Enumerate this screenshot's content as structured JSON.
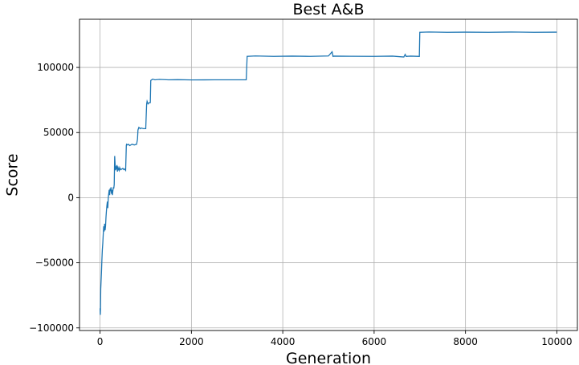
{
  "chart_data": {
    "type": "line",
    "title": "Best A&B",
    "xlabel": "Generation",
    "ylabel": "Score",
    "xlim": [
      -450,
      10450
    ],
    "ylim": [
      -102000,
      137000
    ],
    "xticks": [
      0,
      2000,
      4000,
      6000,
      8000,
      10000
    ],
    "xtick_labels": [
      "0",
      "2000",
      "4000",
      "6000",
      "8000",
      "10000"
    ],
    "yticks": [
      -100000,
      -50000,
      0,
      50000,
      100000
    ],
    "ytick_labels": [
      "−100000",
      "−50000",
      "0",
      "50000",
      "100000"
    ],
    "grid": true,
    "line_color": "#1f77b4",
    "series": [
      {
        "x": [
          0,
          5,
          10,
          15,
          20,
          30,
          40,
          50,
          60,
          70,
          80,
          90,
          100,
          110,
          120,
          130,
          140,
          150,
          160,
          170,
          180,
          190,
          200,
          210,
          220,
          230,
          240,
          250,
          260,
          270,
          280,
          290,
          300,
          310,
          320,
          330,
          340,
          350,
          360,
          370,
          380,
          390,
          400,
          410,
          420,
          430,
          440,
          450,
          460,
          470,
          480,
          500,
          520,
          540,
          560,
          575,
          580,
          600,
          620,
          650,
          700,
          750,
          800,
          820,
          830,
          850,
          880,
          900,
          950,
          1000,
          1020,
          1030,
          1050,
          1080,
          1100,
          1110,
          1150,
          1200,
          1300,
          1500,
          1700,
          2000,
          2500,
          3000,
          3200,
          3220,
          3400,
          3800,
          4200,
          4600,
          5000,
          5080,
          5100,
          5120,
          5500,
          6000,
          6400,
          6650,
          6680,
          6700,
          6800,
          6990,
          7000,
          7200,
          7600,
          8000,
          8500,
          9000,
          9500,
          10000
        ],
        "y": [
          -85000,
          -90000,
          -84000,
          -70000,
          -66000,
          -58000,
          -48000,
          -40000,
          -35000,
          -28000,
          -22000,
          -26000,
          -20000,
          -25000,
          -22000,
          -15000,
          -10000,
          -6000,
          -3000,
          -8000,
          0,
          3000,
          6000,
          2000,
          7000,
          5000,
          8000,
          3000,
          6000,
          2000,
          5000,
          8000,
          7000,
          10000,
          32000,
          25000,
          21000,
          23000,
          22000,
          25000,
          20000,
          24000,
          21000,
          22000,
          21000,
          23000,
          22000,
          21500,
          22000,
          21800,
          22000,
          22500,
          21500,
          22000,
          21000,
          40000,
          41000,
          40500,
          41000,
          40000,
          41000,
          40500,
          41000,
          45000,
          52000,
          54000,
          53000,
          53500,
          53000,
          53000,
          72000,
          74000,
          72000,
          73000,
          73000,
          90000,
          91000,
          90500,
          90800,
          90500,
          90600,
          90400,
          90500,
          90500,
          90500,
          108500,
          108800,
          108500,
          108700,
          108500,
          108800,
          112000,
          108500,
          108700,
          108600,
          108500,
          108700,
          108000,
          110000,
          108500,
          108700,
          108500,
          127000,
          127200,
          127000,
          127100,
          127000,
          127200,
          127000,
          127100
        ]
      }
    ]
  }
}
